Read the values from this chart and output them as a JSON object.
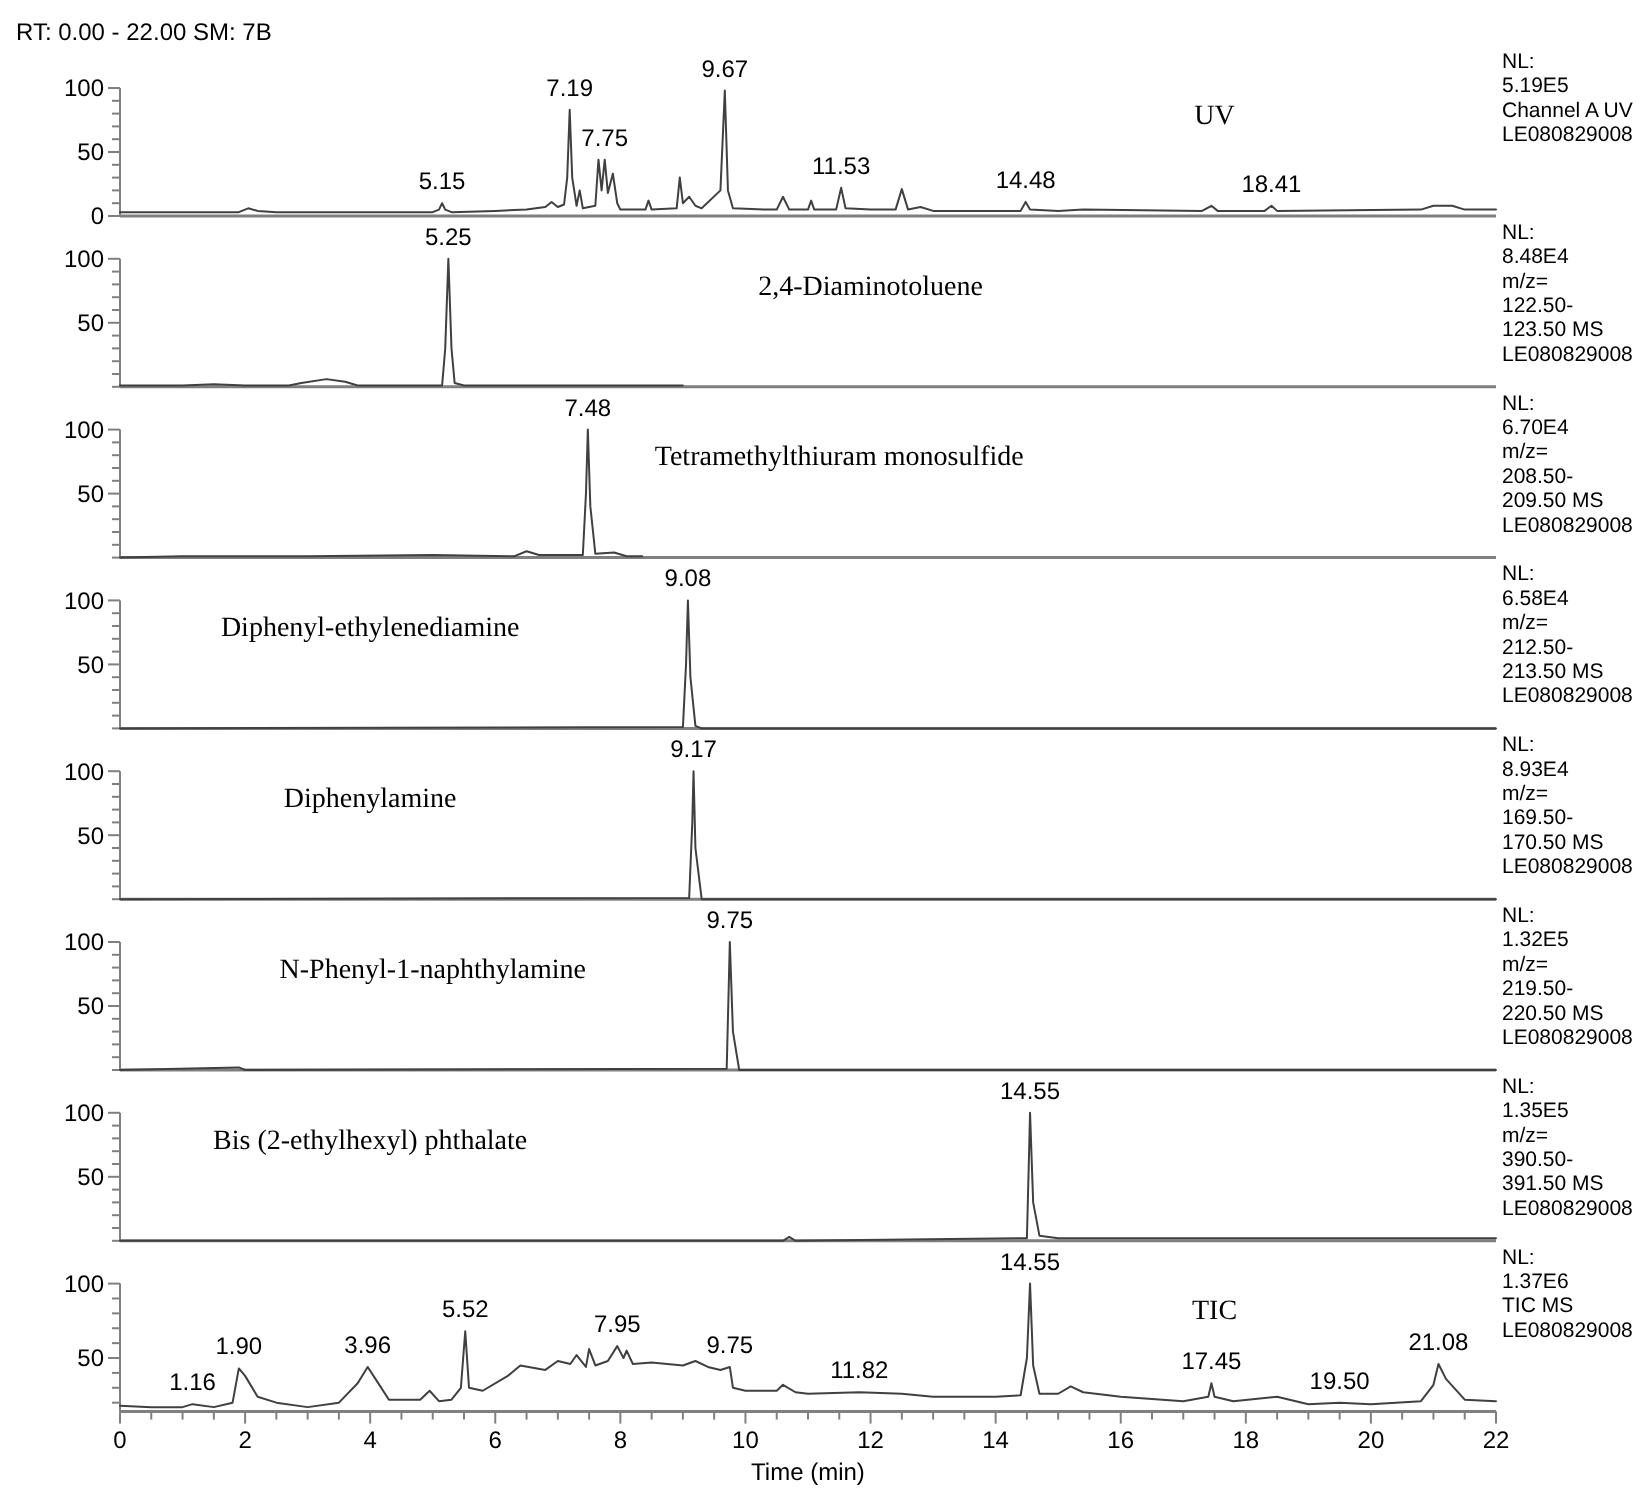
{
  "chart_data": [
    {
      "type": "line",
      "title": "RT: 0.00 - 22.00   SM: 7B",
      "xlim": [
        0,
        22
      ],
      "ylim": [
        0,
        100
      ],
      "tick_labels": "y",
      "yticks": [
        0,
        {
          "value": 10,
          "label": null
        },
        {
          "value": 20,
          "label": null
        },
        {
          "value": 30,
          "label": null
        },
        {
          "value": 40,
          "label": null
        },
        50,
        {
          "value": 60,
          "label": null
        },
        {
          "value": 70,
          "label": null
        },
        {
          "value": 80,
          "label": null
        },
        {
          "value": 90,
          "label": null
        },
        100
      ],
      "series": [
        {
          "color": "#404040",
          "x": [
            0,
            1.5,
            1.9,
            2.05,
            2.2,
            2.5,
            4.5,
            5.0,
            5.1,
            5.15,
            5.2,
            5.3,
            6.0,
            6.5,
            6.8,
            6.9,
            7.0,
            7.1,
            7.15,
            7.19,
            7.23,
            7.3,
            7.35,
            7.4,
            7.6,
            7.65,
            7.7,
            7.75,
            7.8,
            7.88,
            7.95,
            8.0,
            8.4,
            8.45,
            8.5,
            8.9,
            8.95,
            9.0,
            9.1,
            9.2,
            9.3,
            9.6,
            9.67,
            9.72,
            9.8,
            10.3,
            10.5,
            10.6,
            10.7,
            11.0,
            11.05,
            11.1,
            11.45,
            11.53,
            11.6,
            12.0,
            12.4,
            12.5,
            12.6,
            12.8,
            13.0,
            14.4,
            14.48,
            14.55,
            15.0,
            15.4,
            17.3,
            17.45,
            17.55,
            18.3,
            18.41,
            18.5,
            20.8,
            21.0,
            21.3,
            21.5,
            22.0
          ],
          "values": [
            3,
            3,
            3,
            6,
            4,
            3,
            3,
            3,
            5,
            10,
            5,
            3,
            4,
            5,
            7,
            11,
            7,
            9,
            30,
            83,
            30,
            8,
            20,
            6,
            8,
            44,
            20,
            44,
            18,
            33,
            10,
            5,
            5,
            12,
            5,
            6,
            30,
            10,
            15,
            8,
            6,
            20,
            98,
            20,
            6,
            5,
            5,
            15,
            5,
            5,
            12,
            5,
            5,
            22,
            6,
            5,
            5,
            21,
            5,
            7,
            4,
            4,
            11,
            5,
            4,
            5,
            4,
            8,
            4,
            4,
            8,
            4,
            5,
            8,
            8,
            5,
            5
          ]
        }
      ],
      "annotations": [
        "UV",
        "NL:",
        "5.19E5",
        "Channel A  UV",
        "LE080829008",
        {
          "text": "5.15",
          "x": 5.15,
          "y": 10
        },
        {
          "text": "7.19",
          "x": 7.19,
          "y": 83
        },
        {
          "text": "7.75",
          "x": 7.75,
          "y": 44
        },
        {
          "text": "9.67",
          "x": 9.67,
          "y": 98
        },
        {
          "text": "11.53",
          "x": 11.53,
          "y": 22
        },
        {
          "text": "14.48",
          "x": 14.48,
          "y": 11
        },
        {
          "text": "18.41",
          "x": 18.41,
          "y": 8
        }
      ]
    },
    {
      "type": "line",
      "xlim": [
        0,
        22
      ],
      "ylim": [
        0,
        100
      ],
      "tick_labels": "y",
      "yticks": [
        {
          "value": 0,
          "label": null
        },
        {
          "value": 10,
          "label": null
        },
        {
          "value": 20,
          "label": null
        },
        {
          "value": 30,
          "label": null
        },
        {
          "value": 40,
          "label": null
        },
        50,
        {
          "value": 60,
          "label": null
        },
        {
          "value": 70,
          "label": null
        },
        {
          "value": 80,
          "label": null
        },
        {
          "value": 90,
          "label": null
        },
        100
      ],
      "series": [
        {
          "color": "#404040",
          "x": [
            0,
            1.0,
            1.5,
            2.0,
            2.7,
            2.9,
            3.3,
            3.6,
            3.8,
            4.5,
            5.15,
            5.2,
            5.25,
            5.3,
            5.35,
            5.5,
            9.0
          ],
          "values": [
            1,
            1,
            2,
            1,
            1,
            3,
            6,
            4,
            1,
            1,
            1,
            30,
            100,
            30,
            3,
            1,
            1
          ]
        }
      ],
      "annotations": [
        "2,4-Diaminotoluene",
        "NL:",
        "8.48E4",
        "m/z=",
        "122.50-",
        "123.50  MS",
        "LE080829008",
        {
          "text": "5.25",
          "x": 5.25,
          "y": 100
        }
      ]
    },
    {
      "type": "line",
      "xlim": [
        0,
        22
      ],
      "ylim": [
        0,
        100
      ],
      "tick_labels": "y",
      "yticks": [
        {
          "value": 0,
          "label": null
        },
        {
          "value": 10,
          "label": null
        },
        {
          "value": 20,
          "label": null
        },
        {
          "value": 30,
          "label": null
        },
        {
          "value": 40,
          "label": null
        },
        50,
        {
          "value": 60,
          "label": null
        },
        {
          "value": 70,
          "label": null
        },
        {
          "value": 80,
          "label": null
        },
        {
          "value": 90,
          "label": null
        },
        100
      ],
      "series": [
        {
          "color": "#404040",
          "x": [
            0,
            1.0,
            3.0,
            5.0,
            6.3,
            6.5,
            6.7,
            7.0,
            7.4,
            7.45,
            7.48,
            7.52,
            7.6,
            7.9,
            8.1,
            8.35
          ],
          "values": [
            0,
            1,
            1,
            2,
            1,
            5,
            2,
            2,
            2,
            50,
            100,
            40,
            3,
            4,
            1,
            1
          ]
        }
      ],
      "annotations": [
        "Tetramethylthiuram monosulfide",
        "NL:",
        "6.70E4",
        "m/z=",
        "208.50-",
        "209.50  MS",
        "LE080829008",
        {
          "text": "7.48",
          "x": 7.48,
          "y": 100
        }
      ]
    },
    {
      "type": "line",
      "xlim": [
        0,
        22
      ],
      "ylim": [
        0,
        100
      ],
      "tick_labels": "y",
      "yticks": [
        {
          "value": 0,
          "label": null
        },
        {
          "value": 10,
          "label": null
        },
        {
          "value": 20,
          "label": null
        },
        {
          "value": 30,
          "label": null
        },
        {
          "value": 40,
          "label": null
        },
        50,
        {
          "value": 60,
          "label": null
        },
        {
          "value": 70,
          "label": null
        },
        {
          "value": 80,
          "label": null
        },
        {
          "value": 90,
          "label": null
        },
        100
      ],
      "series": [
        {
          "color": "#404040",
          "x": [
            0,
            9.0,
            9.05,
            9.08,
            9.12,
            9.2,
            9.3,
            22
          ],
          "values": [
            0,
            1,
            50,
            100,
            40,
            2,
            0,
            0
          ]
        }
      ],
      "annotations": [
        "Diphenyl-ethylenediamine",
        "NL:",
        "6.58E4",
        "m/z=",
        "212.50-",
        "213.50  MS",
        "LE080829008",
        {
          "text": "9.08",
          "x": 9.08,
          "y": 100
        }
      ]
    },
    {
      "type": "line",
      "xlim": [
        0,
        22
      ],
      "ylim": [
        0,
        100
      ],
      "tick_labels": "y",
      "yticks": [
        {
          "value": 0,
          "label": null
        },
        {
          "value": 10,
          "label": null
        },
        {
          "value": 20,
          "label": null
        },
        {
          "value": 30,
          "label": null
        },
        {
          "value": 40,
          "label": null
        },
        50,
        {
          "value": 60,
          "label": null
        },
        {
          "value": 70,
          "label": null
        },
        {
          "value": 80,
          "label": null
        },
        {
          "value": 90,
          "label": null
        },
        100
      ],
      "series": [
        {
          "color": "#404040",
          "x": [
            0,
            9.1,
            9.15,
            9.17,
            9.2,
            9.3,
            22
          ],
          "values": [
            0,
            1,
            60,
            100,
            40,
            0,
            0
          ]
        }
      ],
      "annotations": [
        "Diphenylamine",
        "NL:",
        "8.93E4",
        "m/z=",
        "169.50-",
        "170.50  MS",
        "LE080829008",
        {
          "text": "9.17",
          "x": 9.17,
          "y": 100
        }
      ]
    },
    {
      "type": "line",
      "xlim": [
        0,
        22
      ],
      "ylim": [
        0,
        100
      ],
      "tick_labels": "y",
      "yticks": [
        {
          "value": 0,
          "label": null
        },
        {
          "value": 10,
          "label": null
        },
        {
          "value": 20,
          "label": null
        },
        {
          "value": 30,
          "label": null
        },
        {
          "value": 40,
          "label": null
        },
        50,
        {
          "value": 60,
          "label": null
        },
        {
          "value": 70,
          "label": null
        },
        {
          "value": 80,
          "label": null
        },
        {
          "value": 90,
          "label": null
        },
        100
      ],
      "series": [
        {
          "color": "#404040",
          "x": [
            0,
            1.9,
            2.0,
            9.7,
            9.73,
            9.75,
            9.8,
            9.9,
            22
          ],
          "values": [
            0,
            2,
            0,
            1,
            60,
            100,
            30,
            0,
            0
          ]
        }
      ],
      "annotations": [
        "N-Phenyl-1-naphthylamine",
        "NL:",
        "1.32E5",
        "m/z=",
        "219.50-",
        "220.50  MS",
        "LE080829008",
        {
          "text": "9.75",
          "x": 9.75,
          "y": 100
        }
      ]
    },
    {
      "type": "line",
      "xlim": [
        0,
        22
      ],
      "ylim": [
        0,
        100
      ],
      "tick_labels": "y",
      "yticks": [
        {
          "value": 0,
          "label": null
        },
        {
          "value": 10,
          "label": null
        },
        {
          "value": 20,
          "label": null
        },
        {
          "value": 30,
          "label": null
        },
        {
          "value": 40,
          "label": null
        },
        50,
        {
          "value": 60,
          "label": null
        },
        {
          "value": 70,
          "label": null
        },
        {
          "value": 80,
          "label": null
        },
        {
          "value": 90,
          "label": null
        },
        100
      ],
      "series": [
        {
          "color": "#404040",
          "x": [
            0,
            10.6,
            10.7,
            10.8,
            14.5,
            14.53,
            14.55,
            14.6,
            14.7,
            15.0,
            22
          ],
          "values": [
            0,
            0,
            3,
            0,
            2,
            60,
            100,
            30,
            4,
            2,
            2
          ]
        }
      ],
      "annotations": [
        "Bis (2-ethylhexyl) phthalate",
        "NL:",
        "1.35E5",
        "m/z=",
        "390.50-",
        "391.50  MS",
        "LE080829008",
        {
          "text": "14.55",
          "x": 14.55,
          "y": 100
        }
      ]
    },
    {
      "type": "line",
      "xlabel": "Time (min)",
      "xlim": [
        0,
        22
      ],
      "ylim": [
        14,
        100
      ],
      "yticks": [
        {
          "value": 20,
          "label": null
        },
        {
          "value": 30,
          "label": null
        },
        {
          "value": 40,
          "label": null
        },
        50,
        {
          "value": 60,
          "label": null
        },
        {
          "value": 70,
          "label": null
        },
        {
          "value": 80,
          "label": null
        },
        {
          "value": 90,
          "label": null
        },
        100
      ],
      "xticks": [
        0,
        {
          "value": 0.5,
          "label": null
        },
        {
          "value": 1,
          "label": null
        },
        {
          "value": 1.5,
          "label": null
        },
        2,
        {
          "value": 2.5,
          "label": null
        },
        {
          "value": 3,
          "label": null
        },
        {
          "value": 3.5,
          "label": null
        },
        4,
        {
          "value": 4.5,
          "label": null
        },
        {
          "value": 5,
          "label": null
        },
        {
          "value": 5.5,
          "label": null
        },
        6,
        {
          "value": 6.5,
          "label": null
        },
        {
          "value": 7,
          "label": null
        },
        {
          "value": 7.5,
          "label": null
        },
        8,
        {
          "value": 8.5,
          "label": null
        },
        {
          "value": 9,
          "label": null
        },
        {
          "value": 9.5,
          "label": null
        },
        10,
        {
          "value": 10.5,
          "label": null
        },
        {
          "value": 11,
          "label": null
        },
        {
          "value": 11.5,
          "label": null
        },
        12,
        {
          "value": 12.5,
          "label": null
        },
        {
          "value": 13,
          "label": null
        },
        {
          "value": 13.5,
          "label": null
        },
        14,
        {
          "value": 14.5,
          "label": null
        },
        {
          "value": 15,
          "label": null
        },
        {
          "value": 15.5,
          "label": null
        },
        16,
        {
          "value": 16.5,
          "label": null
        },
        {
          "value": 17,
          "label": null
        },
        {
          "value": 17.5,
          "label": null
        },
        18,
        {
          "value": 18.5,
          "label": null
        },
        {
          "value": 19,
          "label": null
        },
        {
          "value": 19.5,
          "label": null
        },
        20,
        {
          "value": 20.5,
          "label": null
        },
        {
          "value": 21,
          "label": null
        },
        {
          "value": 21.5,
          "label": null
        },
        22
      ],
      "series": [
        {
          "color": "#404040",
          "x": [
            0,
            0.5,
            1.0,
            1.16,
            1.5,
            1.8,
            1.9,
            2.0,
            2.2,
            2.5,
            3.0,
            3.5,
            3.8,
            3.96,
            4.1,
            4.3,
            4.8,
            4.95,
            5.1,
            5.3,
            5.45,
            5.52,
            5.58,
            5.8,
            6.2,
            6.4,
            6.8,
            7.0,
            7.2,
            7.3,
            7.45,
            7.5,
            7.6,
            7.8,
            7.95,
            8.05,
            8.1,
            8.2,
            8.5,
            9.0,
            9.2,
            9.4,
            9.6,
            9.75,
            9.8,
            10.0,
            10.5,
            10.6,
            10.8,
            11.0,
            11.82,
            12.5,
            13.0,
            14.0,
            14.4,
            14.5,
            14.55,
            14.6,
            14.7,
            15.0,
            15.2,
            15.4,
            16.0,
            17.0,
            17.4,
            17.45,
            17.5,
            17.8,
            18.5,
            19.0,
            19.5,
            20.0,
            20.8,
            21.0,
            21.08,
            21.2,
            21.5,
            22.0
          ],
          "values": [
            18,
            17,
            17,
            19,
            17,
            20,
            43,
            38,
            24,
            20,
            17,
            20,
            33,
            44,
            35,
            22,
            22,
            28,
            21,
            22,
            30,
            68,
            30,
            28,
            38,
            45,
            42,
            48,
            46,
            52,
            44,
            56,
            45,
            48,
            58,
            50,
            55,
            46,
            47,
            45,
            48,
            44,
            42,
            44,
            30,
            28,
            28,
            32,
            27,
            26,
            27,
            26,
            24,
            24,
            25,
            50,
            100,
            45,
            26,
            26,
            31,
            27,
            24,
            21,
            24,
            33,
            24,
            21,
            24,
            19,
            20,
            19,
            21,
            32,
            46,
            36,
            22,
            21
          ]
        }
      ],
      "annotations": [
        "TIC",
        "NL:",
        "1.37E6",
        "TIC  MS",
        "LE080829008",
        {
          "text": "1.16",
          "x": 1.16,
          "y": 19
        },
        {
          "text": "1.90",
          "x": 1.9,
          "y": 43
        },
        {
          "text": "3.96",
          "x": 3.96,
          "y": 44
        },
        {
          "text": "5.52",
          "x": 5.52,
          "y": 68
        },
        {
          "text": "7.95",
          "x": 7.95,
          "y": 58
        },
        {
          "text": "9.75",
          "x": 9.75,
          "y": 44
        },
        {
          "text": "11.82",
          "x": 11.82,
          "y": 27
        },
        {
          "text": "14.55",
          "x": 14.55,
          "y": 100
        },
        {
          "text": "17.45",
          "x": 17.45,
          "y": 33
        },
        {
          "text": "19.50",
          "x": 19.5,
          "y": 20
        },
        {
          "text": "21.08",
          "x": 21.08,
          "y": 46
        }
      ]
    }
  ]
}
